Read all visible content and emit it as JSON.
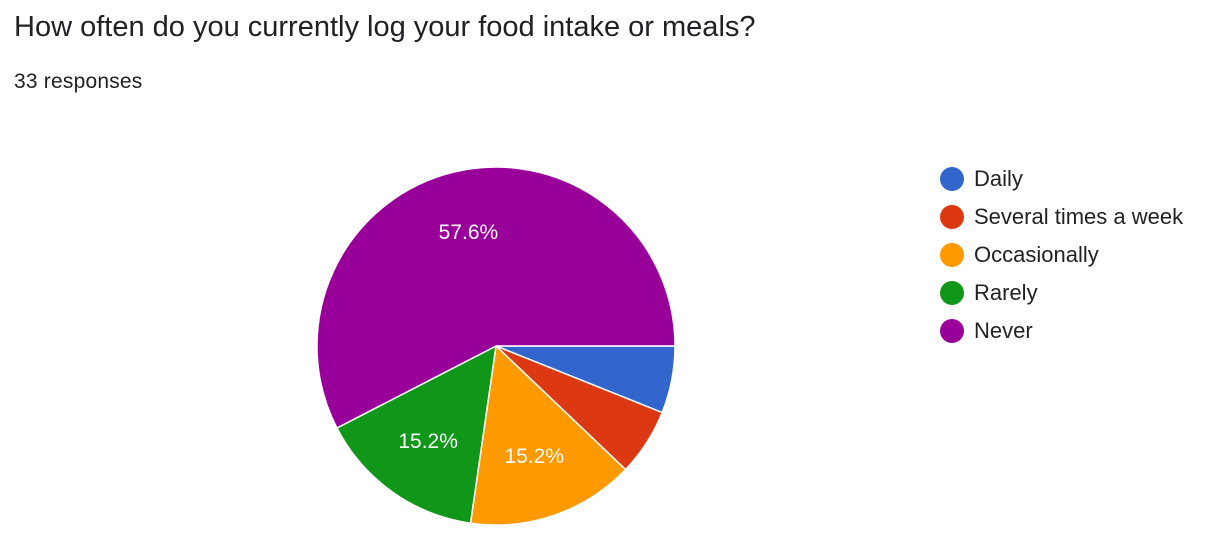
{
  "question": {
    "title": "How often do you currently log your food intake or meals?",
    "responses": "33 responses"
  },
  "chart_data": {
    "type": "pie",
    "title": "How often do you currently log your food intake or meals?",
    "total_responses": 33,
    "start_angle_deg": 0,
    "direction": "clockwise",
    "legend_position": "right",
    "slices": [
      {
        "label": "Daily",
        "count": 2,
        "percent": 6.1,
        "color": "#3366cc",
        "data_label": ""
      },
      {
        "label": "Several times a week",
        "count": 2,
        "percent": 6.1,
        "color": "#dc3912",
        "data_label": ""
      },
      {
        "label": "Occasionally",
        "count": 5,
        "percent": 15.2,
        "color": "#ff9900",
        "data_label": "15.2%"
      },
      {
        "label": "Rarely",
        "count": 5,
        "percent": 15.2,
        "color": "#109618",
        "data_label": "15.2%"
      },
      {
        "label": "Never",
        "count": 19,
        "percent": 57.6,
        "color": "#990099",
        "data_label": "57.6%"
      }
    ]
  }
}
